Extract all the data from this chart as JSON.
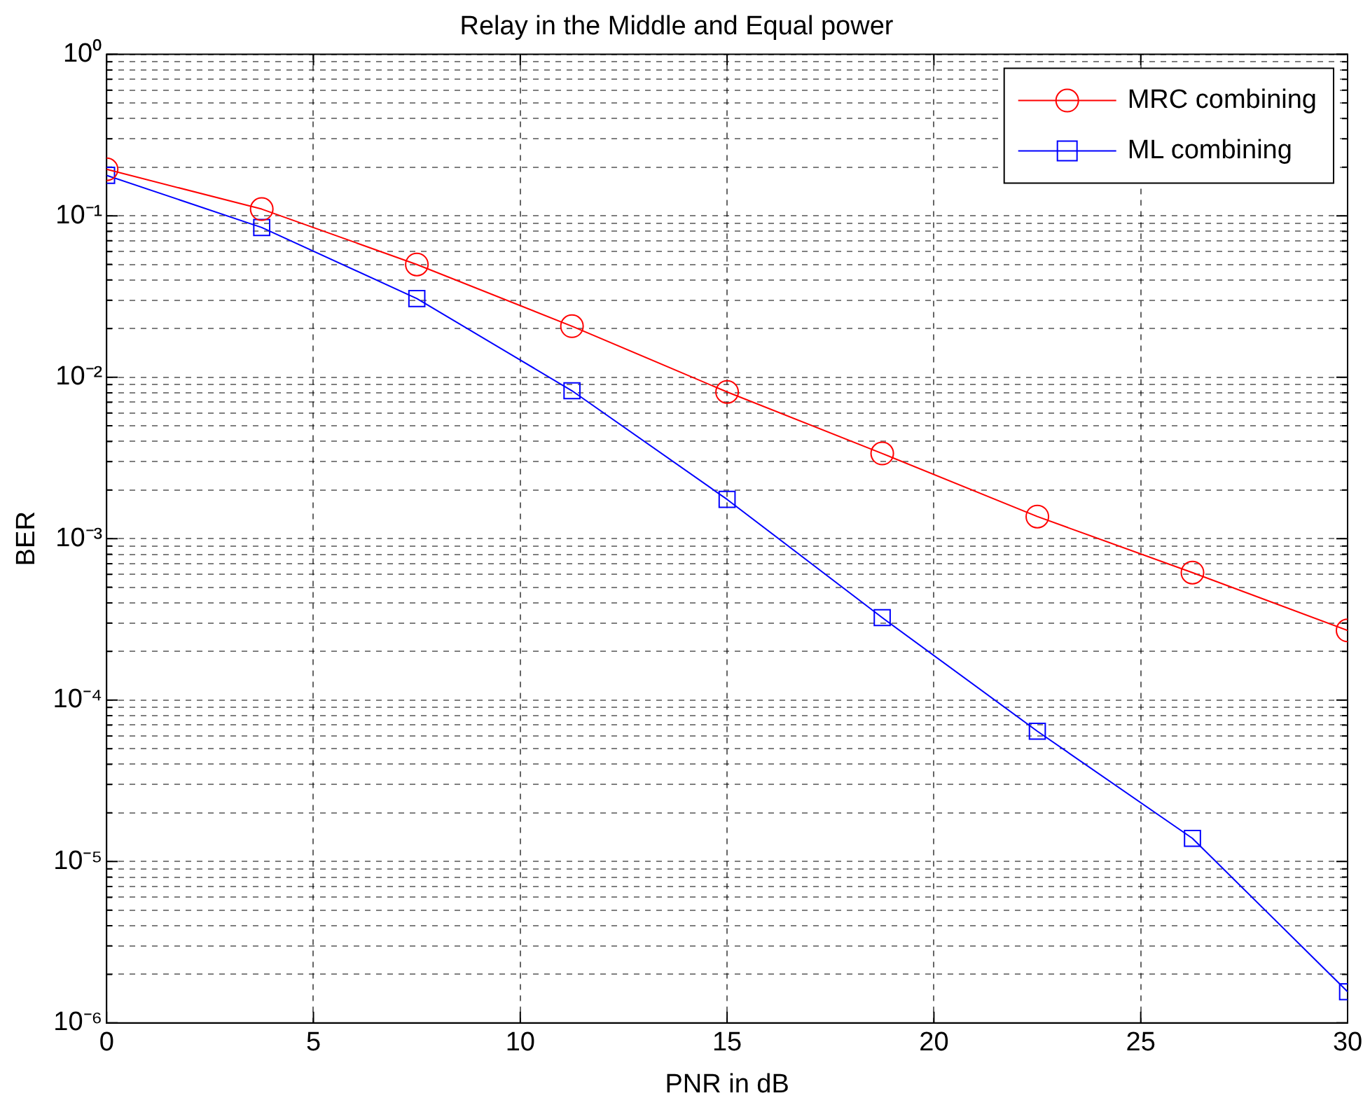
{
  "chart_data": {
    "type": "line",
    "title": "Relay in the Middle and Equal power",
    "xlabel": "PNR in dB",
    "ylabel": "BER",
    "x": [
      0,
      3.75,
      7.5,
      11.25,
      15,
      18.75,
      22.5,
      26.25,
      30
    ],
    "series": [
      {
        "name": "MRC combining",
        "color": "#ff0000",
        "marker": "circle",
        "values": [
          0.194,
          0.11,
          0.0499,
          0.0207,
          0.0081,
          0.00337,
          0.00137,
          0.000616,
          0.00027
        ]
      },
      {
        "name": "ML combining",
        "color": "#0000ff",
        "marker": "square",
        "values": [
          0.178,
          0.0846,
          0.0307,
          0.00824,
          0.00175,
          0.000324,
          6.41e-05,
          1.39e-05,
          1.56e-06
        ]
      }
    ],
    "log": "y",
    "xlim": [
      0,
      30
    ],
    "ylim": [
      1e-06,
      1
    ],
    "xticks": [
      0,
      5,
      10,
      15,
      20,
      25,
      30
    ],
    "yticks": [
      {
        "value": 1e-06,
        "label": "10⁻⁶"
      },
      {
        "value": 2e-06,
        "label": null
      },
      {
        "value": 3e-06,
        "label": null
      },
      {
        "value": 4e-06,
        "label": null
      },
      {
        "value": 5e-06,
        "label": null
      },
      {
        "value": 6e-06,
        "label": null
      },
      {
        "value": 7e-06,
        "label": null
      },
      {
        "value": 8e-06,
        "label": null
      },
      {
        "value": 9e-06,
        "label": null
      },
      {
        "value": 1e-05,
        "label": "10⁻⁵"
      },
      {
        "value": 2e-05,
        "label": null
      },
      {
        "value": 3e-05,
        "label": null
      },
      {
        "value": 4e-05,
        "label": null
      },
      {
        "value": 5e-05,
        "label": null
      },
      {
        "value": 6e-05,
        "label": null
      },
      {
        "value": 7e-05,
        "label": null
      },
      {
        "value": 8e-05,
        "label": null
      },
      {
        "value": 9e-05,
        "label": null
      },
      {
        "value": 0.0001,
        "label": "10⁻⁴"
      },
      {
        "value": 0.0002,
        "label": null
      },
      {
        "value": 0.0003,
        "label": null
      },
      {
        "value": 0.0004,
        "label": null
      },
      {
        "value": 0.0005,
        "label": null
      },
      {
        "value": 0.0006,
        "label": null
      },
      {
        "value": 0.0007,
        "label": null
      },
      {
        "value": 0.0008,
        "label": null
      },
      {
        "value": 0.0009,
        "label": null
      },
      {
        "value": 0.001,
        "label": "10⁻³"
      },
      {
        "value": 0.002,
        "label": null
      },
      {
        "value": 0.003,
        "label": null
      },
      {
        "value": 0.004,
        "label": null
      },
      {
        "value": 0.005,
        "label": null
      },
      {
        "value": 0.006,
        "label": null
      },
      {
        "value": 0.007,
        "label": null
      },
      {
        "value": 0.008,
        "label": null
      },
      {
        "value": 0.009,
        "label": null
      },
      {
        "value": 0.01,
        "label": "10⁻²"
      },
      {
        "value": 0.02,
        "label": null
      },
      {
        "value": 0.03,
        "label": null
      },
      {
        "value": 0.04,
        "label": null
      },
      {
        "value": 0.05,
        "label": null
      },
      {
        "value": 0.06,
        "label": null
      },
      {
        "value": 0.07,
        "label": null
      },
      {
        "value": 0.08,
        "label": null
      },
      {
        "value": 0.09,
        "label": null
      },
      {
        "value": 0.1,
        "label": "10⁻¹"
      },
      {
        "value": 0.2,
        "label": null
      },
      {
        "value": 0.3,
        "label": null
      },
      {
        "value": 0.4,
        "label": null
      },
      {
        "value": 0.5,
        "label": null
      },
      {
        "value": 0.6,
        "label": null
      },
      {
        "value": 0.7,
        "label": null
      },
      {
        "value": 0.8,
        "label": null
      },
      {
        "value": 0.9,
        "label": null
      },
      {
        "value": 1,
        "label": "10⁰"
      }
    ],
    "grid": true,
    "legend": "top right",
    "line_style": "solid"
  }
}
